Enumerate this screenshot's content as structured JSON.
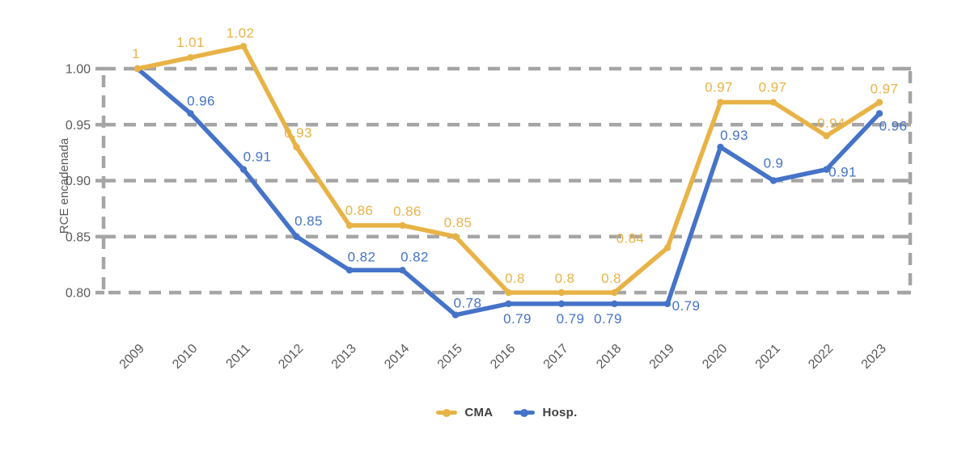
{
  "chart_data": {
    "type": "line",
    "title": "",
    "xlabel": "",
    "ylabel": "RCE encadenada",
    "categories": [
      "2009",
      "2010",
      "2011",
      "2012",
      "2013",
      "2014",
      "2015",
      "2016",
      "2017",
      "2018",
      "2019",
      "2020",
      "2021",
      "2022",
      "2023"
    ],
    "y_ticks": [
      "1.00",
      "0.95",
      "0.90",
      "0.85",
      "0.80"
    ],
    "y_tick_values": [
      1.0,
      0.95,
      0.9,
      0.85,
      0.8
    ],
    "ylim": [
      0.8,
      1.0
    ],
    "grid": "dashed horizontal gridlines with dashed rectangular frame",
    "legend_position": "bottom-center",
    "colors": {
      "grid": "#A5A5A5",
      "axis_text": "#595959",
      "legend_text": "#404040",
      "background": "#FFFFFF"
    },
    "series": [
      {
        "name": "CMA",
        "color": "#E8B346",
        "values": [
          1,
          1.01,
          1.02,
          0.93,
          0.86,
          0.86,
          0.85,
          0.8,
          0.8,
          0.8,
          0.84,
          0.97,
          0.97,
          0.94,
          0.97
        ],
        "labels": [
          "1",
          "1.01",
          "1.02",
          "0.93",
          "0.86",
          "0.86",
          "0.85",
          "0.8",
          "0.8",
          "0.8",
          "0.84",
          "0.97",
          "0.97",
          "0.94",
          "0.97"
        ],
        "label_offsets": [
          [
            -2,
            -13
          ],
          [
            0,
            -13
          ],
          [
            -4,
            -11
          ],
          [
            2,
            -12
          ],
          [
            12,
            -13
          ],
          [
            6,
            -12
          ],
          [
            3,
            -12
          ],
          [
            8,
            -12
          ],
          [
            4,
            -12
          ],
          [
            -4,
            -12
          ],
          [
            -46,
            -6
          ],
          [
            -2,
            -13
          ],
          [
            -1,
            -13
          ],
          [
            6,
            -10
          ],
          [
            6,
            -11
          ]
        ]
      },
      {
        "name": "Hosp.",
        "color": "#4573C8",
        "values": [
          1,
          0.96,
          0.91,
          0.85,
          0.82,
          0.82,
          0.78,
          0.79,
          0.79,
          0.79,
          0.79,
          0.93,
          0.9,
          0.91,
          0.96
        ],
        "labels": [
          "",
          "0.96",
          "0.91",
          "0.85",
          "0.82",
          "0.82",
          "0.78",
          "0.79",
          "0.79",
          "0.79",
          "0.79",
          "0.93",
          "0.9",
          "0.91",
          "0.96"
        ],
        "label_offsets": [
          [
            0,
            0
          ],
          [
            13,
            -10
          ],
          [
            17,
            -10
          ],
          [
            15,
            -14
          ],
          [
            15,
            -11
          ],
          [
            15,
            -11
          ],
          [
            15,
            -9
          ],
          [
            11,
            24
          ],
          [
            11,
            24
          ],
          [
            -8,
            24
          ],
          [
            23,
            8
          ],
          [
            17,
            -9
          ],
          [
            0,
            -16
          ],
          [
            20,
            9
          ],
          [
            17,
            21
          ]
        ]
      }
    ]
  }
}
